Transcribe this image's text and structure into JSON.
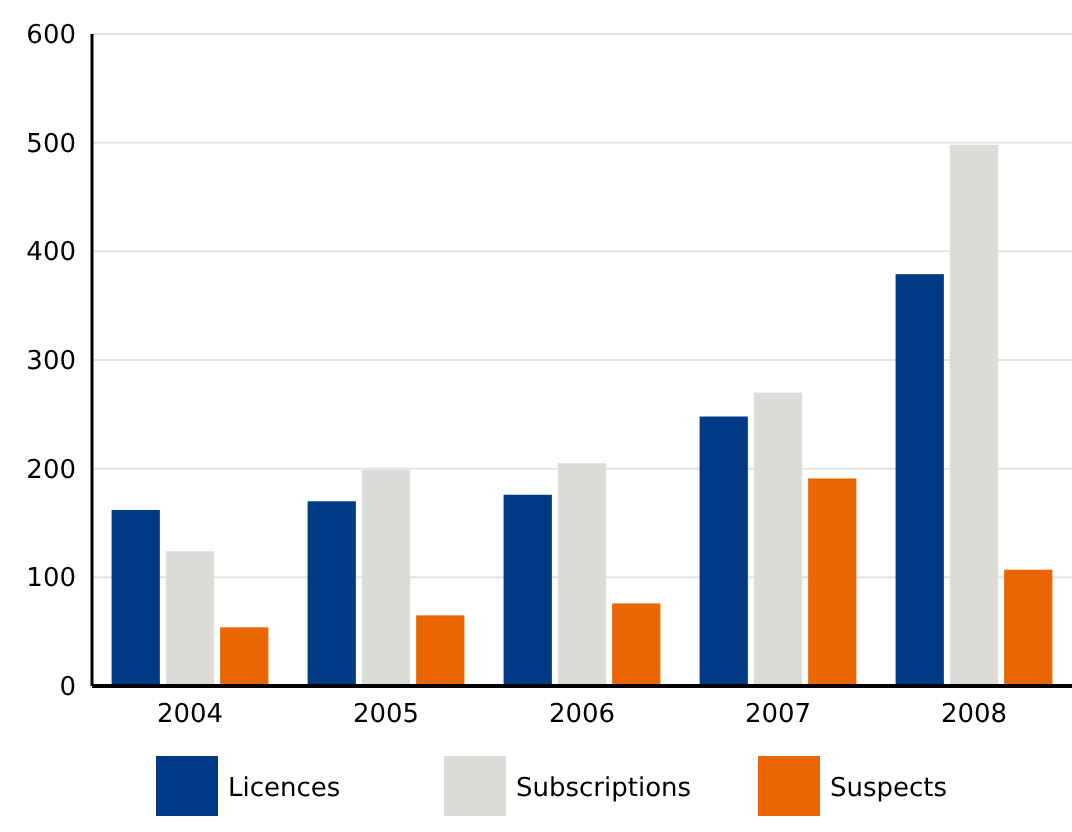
{
  "chart_data": {
    "type": "bar",
    "categories": [
      "2004",
      "2005",
      "2006",
      "2007",
      "2008"
    ],
    "series": [
      {
        "name": "Licences",
        "color": "#003a87",
        "values": [
          162,
          170,
          176,
          248,
          379
        ]
      },
      {
        "name": "Subscriptions",
        "color": "#dcdcd6",
        "values": [
          124,
          199,
          205,
          270,
          498
        ]
      },
      {
        "name": "Suspects",
        "color": "#e96601",
        "values": [
          54,
          65,
          76,
          191,
          107
        ]
      }
    ],
    "ylim": [
      0,
      600
    ],
    "yticks": [
      0,
      100,
      200,
      300,
      400,
      500,
      600
    ],
    "grid": "y",
    "legend": "bottom"
  }
}
